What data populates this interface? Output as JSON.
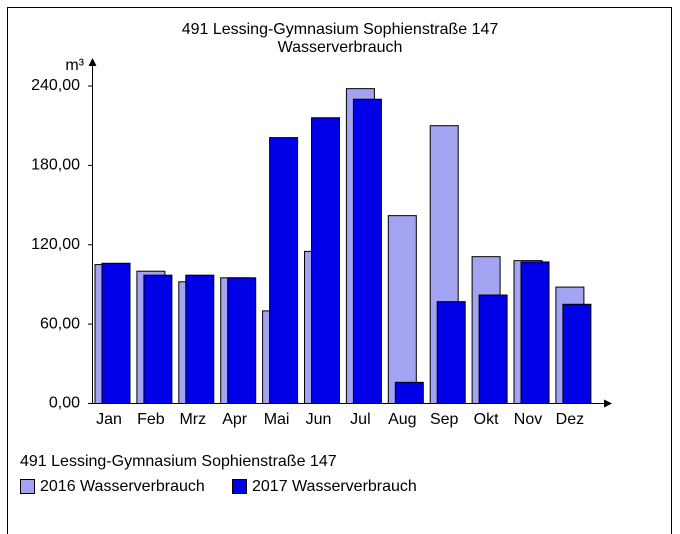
{
  "chart_data": {
    "type": "bar",
    "title": "491 Lessing-Gymnasium Sophienstraße 147",
    "subtitle": "Wasserverbrauch",
    "y_label": "m³",
    "legend_title": "491 Lessing-Gymnasium Sophienstraße 147",
    "categories": [
      "Jan",
      "Feb",
      "Mrz",
      "Apr",
      "Mai",
      "Jun",
      "Jul",
      "Aug",
      "Sep",
      "Okt",
      "Nov",
      "Dez"
    ],
    "series": [
      {
        "name": "2016 Wasserverbrauch",
        "color": "#a3a3f2",
        "values": [
          105,
          100,
          92,
          95,
          70,
          115,
          238,
          142,
          210,
          111,
          108,
          88
        ]
      },
      {
        "name": "2017 Wasserverbrauch",
        "color": "#0000e8",
        "values": [
          106,
          97,
          97,
          95,
          201,
          216,
          230,
          16,
          77,
          82,
          107,
          75
        ]
      }
    ],
    "ylim": [
      0,
      240
    ],
    "yticks": [
      {
        "value": 0,
        "label": "0,00"
      },
      {
        "value": 60,
        "label": "60,00"
      },
      {
        "value": 120,
        "label": "120,00"
      },
      {
        "value": 180,
        "label": "180,00"
      },
      {
        "value": 240,
        "label": "240,00"
      }
    ]
  }
}
